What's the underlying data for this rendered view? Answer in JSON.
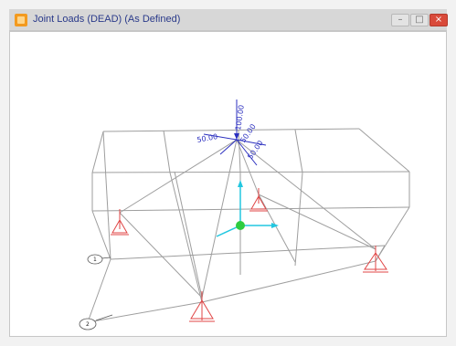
{
  "window": {
    "title": "Joint Loads (DEAD) (As Defined)",
    "minimize_glyph": "–",
    "maximize_glyph": "□",
    "close_glyph": "×"
  },
  "view": {
    "load_labels": [
      "100.00",
      "50.00",
      "50.00",
      "50.00"
    ],
    "joint_labels": [
      "1",
      "2"
    ]
  },
  "colors": {
    "frame": "#9e9e9e",
    "load_arrows": "#2b2fbf",
    "supports": "#e04545",
    "local_axes": "#22c7e0",
    "origin": "#2ecc40"
  }
}
